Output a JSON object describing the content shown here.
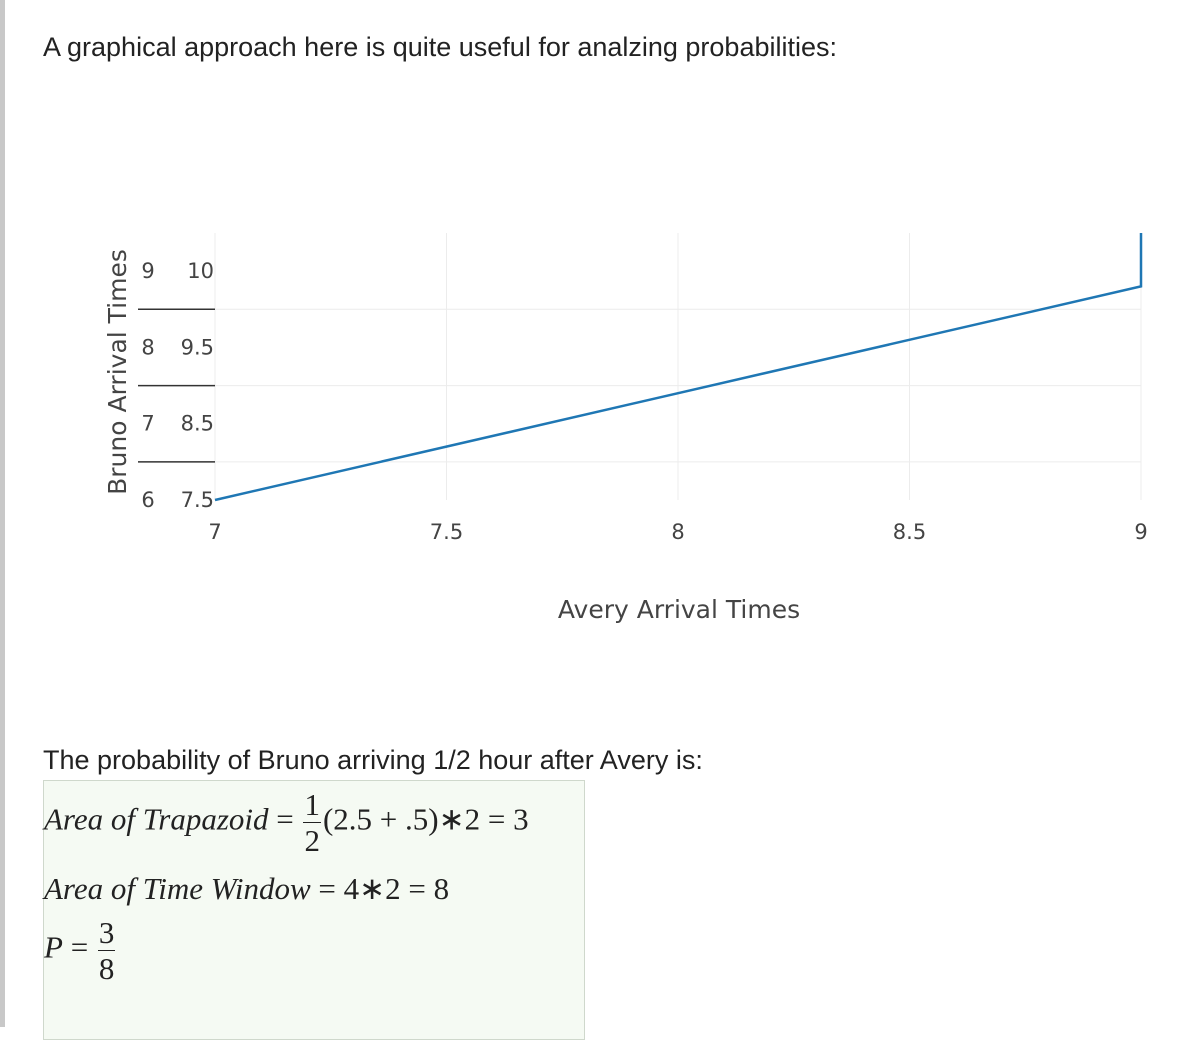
{
  "intro_text": "A graphical approach here is quite useful for analzing probabilities:",
  "chart_data": {
    "type": "line",
    "xlabel": "Avery Arrival Times",
    "ylabel": "Bruno Arrival Times",
    "x_ticks": [
      "7",
      "7.5",
      "8",
      "8.5",
      "9"
    ],
    "xlim": [
      7,
      9
    ],
    "y_tick_rows": [
      {
        "a": "6",
        "b": "7.5"
      },
      {
        "a": "7",
        "b": "8.5"
      },
      {
        "a": "8",
        "b": "9.5"
      },
      {
        "a": "9",
        "b": "10"
      }
    ],
    "series": [
      {
        "x": [
          7,
          9,
          9
        ],
        "y": [
          7.5,
          9.5,
          10
        ],
        "color": "#1f77b4"
      }
    ],
    "ylim": [
      7.5,
      10
    ],
    "grid": true
  },
  "prob_text": "The probability of Bruno arriving 1/2 hour after Avery is:",
  "math": {
    "row1_label": "Area of Trapazoid",
    "row1_eq": "=",
    "row1_frac_num": "1",
    "row1_frac_den": "2",
    "row1_rest": "(2.5 + .5)∗2 = 3",
    "row2_label": "Area of Time Window",
    "row2_rest": "= 4∗2 = 8",
    "row3_label": "P",
    "row3_eq": "=",
    "row3_frac_num": "3",
    "row3_frac_den": "8"
  }
}
